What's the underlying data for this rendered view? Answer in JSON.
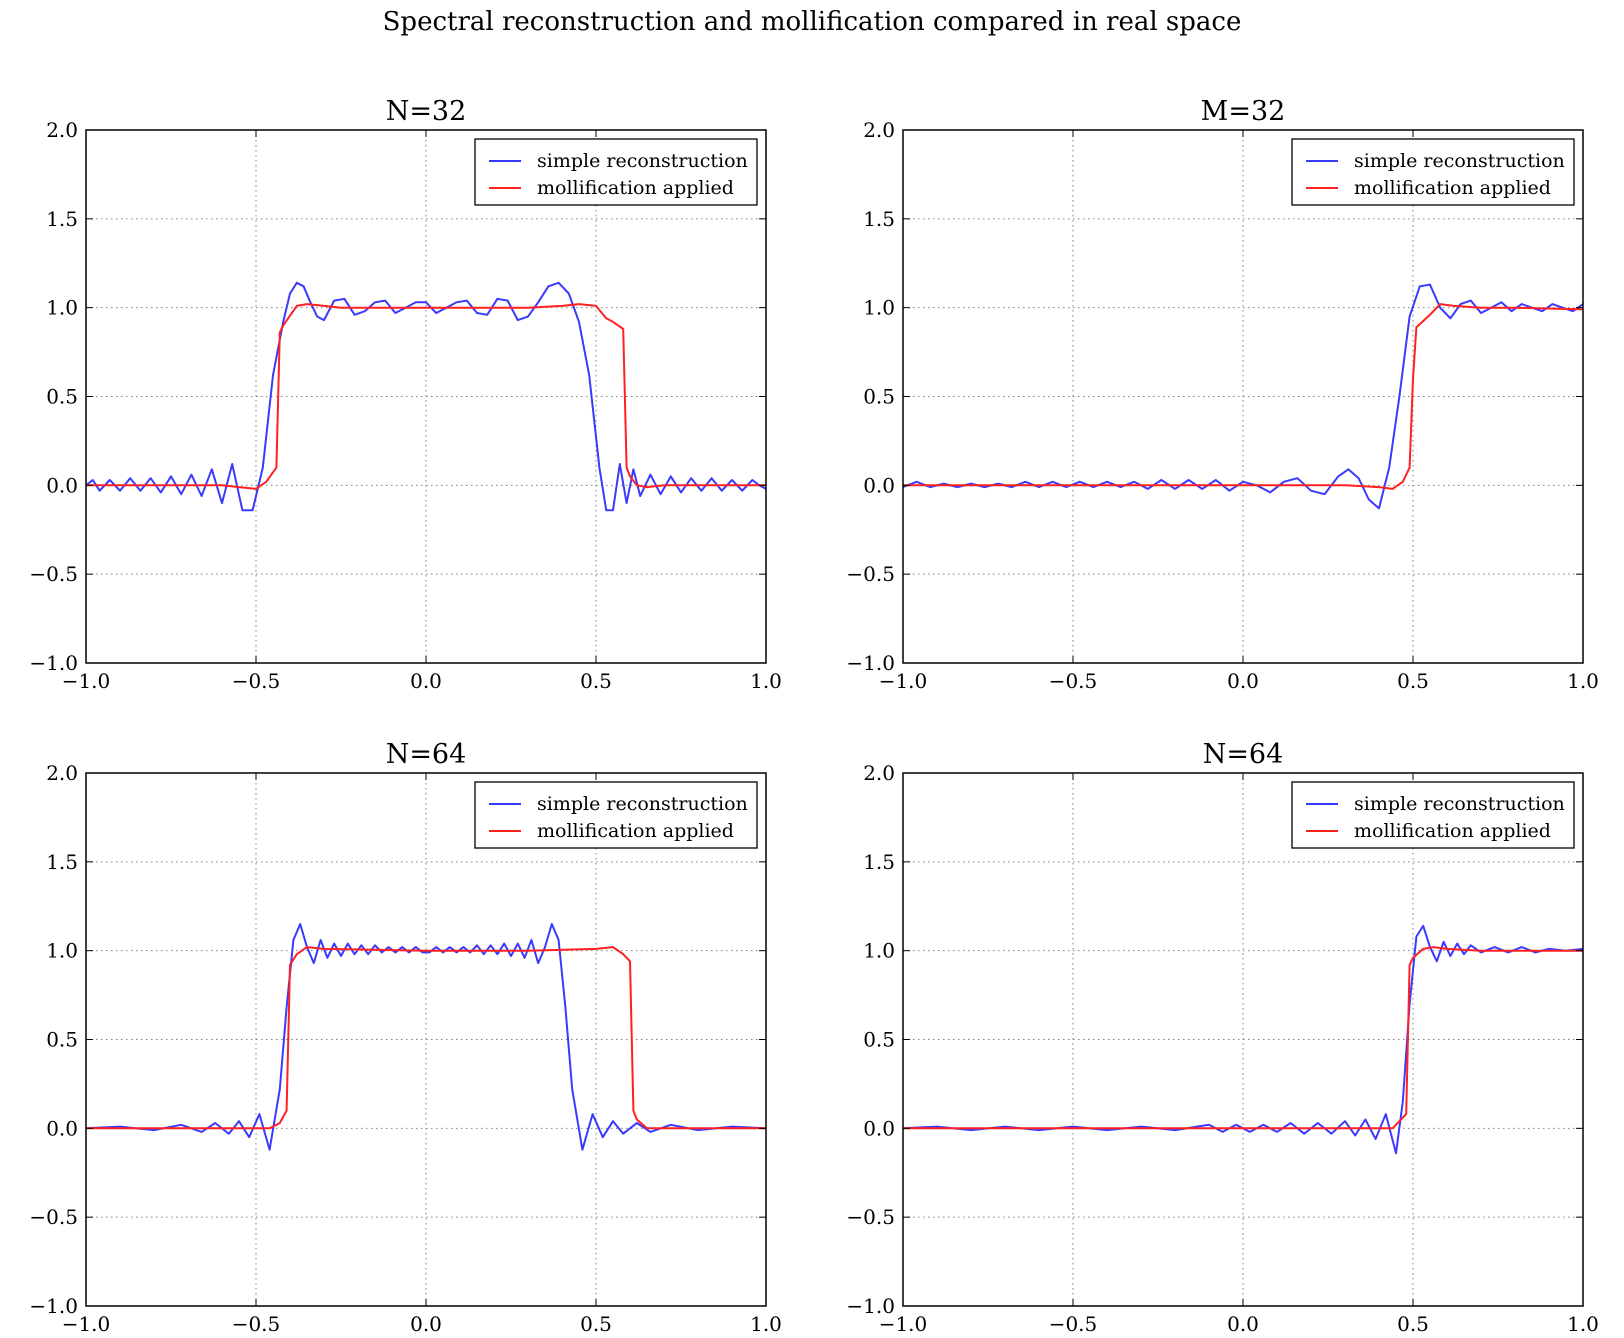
{
  "figure": {
    "title": "Spectral reconstruction and mollification compared in real space"
  },
  "legend_labels": [
    "simple reconstruction",
    "mollification applied"
  ],
  "colors": {
    "simple": "#3a3aff",
    "mollified": "#ff2020",
    "grid": "#808080"
  },
  "chart_data": [
    {
      "type": "line",
      "title": "N=32",
      "xlim": [
        -1.0,
        1.0
      ],
      "ylim": [
        -1.0,
        2.0
      ],
      "xticks": [
        -1.0,
        -0.5,
        0.0,
        0.5,
        1.0
      ],
      "xtick_labels": [
        "−1.0",
        "−0.5",
        "0.0",
        "0.5",
        "1.0"
      ],
      "yticks": [
        -1.0,
        -0.5,
        0.0,
        0.5,
        1.0,
        1.5,
        2.0
      ],
      "ytick_labels": [
        "−1.0",
        "−0.5",
        "0.0",
        "0.5",
        "1.0",
        "1.5",
        "2.0"
      ],
      "grid": true,
      "legend": "upper right",
      "series": [
        {
          "name": "simple reconstruction",
          "color": "#3a3aff",
          "x": [
            -1.0,
            -0.98,
            -0.96,
            -0.93,
            -0.9,
            -0.87,
            -0.84,
            -0.81,
            -0.78,
            -0.75,
            -0.72,
            -0.69,
            -0.66,
            -0.63,
            -0.6,
            -0.57,
            -0.54,
            -0.51,
            -0.48,
            -0.45,
            -0.42,
            -0.4,
            -0.38,
            -0.36,
            -0.34,
            -0.32,
            -0.3,
            -0.27,
            -0.24,
            -0.21,
            -0.18,
            -0.15,
            -0.12,
            -0.09,
            -0.06,
            -0.03,
            0.0,
            0.03,
            0.06,
            0.09,
            0.12,
            0.15,
            0.18,
            0.21,
            0.24,
            0.27,
            0.3,
            0.33,
            0.36,
            0.39,
            0.42,
            0.45,
            0.48,
            0.51,
            0.53,
            0.55,
            0.57,
            0.59,
            0.61,
            0.63,
            0.66,
            0.69,
            0.72,
            0.75,
            0.78,
            0.81,
            0.84,
            0.87,
            0.9,
            0.93,
            0.96,
            0.98,
            1.0
          ],
          "y": [
            0.0,
            0.03,
            -0.03,
            0.03,
            -0.03,
            0.04,
            -0.03,
            0.04,
            -0.04,
            0.05,
            -0.05,
            0.06,
            -0.06,
            0.09,
            -0.1,
            0.12,
            -0.14,
            -0.14,
            0.1,
            0.62,
            0.92,
            1.08,
            1.14,
            1.12,
            1.03,
            0.95,
            0.93,
            1.04,
            1.05,
            0.96,
            0.98,
            1.03,
            1.04,
            0.97,
            1.0,
            1.03,
            1.03,
            0.97,
            1.0,
            1.03,
            1.04,
            0.97,
            0.96,
            1.05,
            1.04,
            0.93,
            0.95,
            1.03,
            1.12,
            1.14,
            1.08,
            0.92,
            0.62,
            0.1,
            -0.14,
            -0.14,
            0.12,
            -0.1,
            0.09,
            -0.06,
            0.06,
            -0.05,
            0.05,
            -0.04,
            0.04,
            -0.03,
            0.04,
            -0.03,
            0.03,
            -0.03,
            0.03,
            0.0,
            -0.02
          ]
        },
        {
          "name": "mollification applied",
          "color": "#ff2020",
          "x": [
            -1.0,
            -0.8,
            -0.6,
            -0.55,
            -0.5,
            -0.47,
            -0.44,
            -0.43,
            -0.42,
            -0.38,
            -0.35,
            -0.3,
            -0.25,
            -0.2,
            0.0,
            0.3,
            0.4,
            0.45,
            0.5,
            0.53,
            0.55,
            0.58,
            0.59,
            0.6,
            0.62,
            0.65,
            0.7,
            0.8,
            1.0
          ],
          "y": [
            0.0,
            0.0,
            0.0,
            -0.01,
            -0.02,
            0.02,
            0.1,
            0.86,
            0.9,
            1.01,
            1.02,
            1.01,
            1.0,
            1.0,
            1.0,
            1.0,
            1.01,
            1.02,
            1.01,
            0.94,
            0.92,
            0.88,
            0.1,
            0.05,
            0.0,
            -0.01,
            0.0,
            0.0,
            0.0
          ]
        }
      ]
    },
    {
      "type": "line",
      "title": "M=32",
      "xlim": [
        -1.0,
        1.0
      ],
      "ylim": [
        -1.0,
        2.0
      ],
      "xticks": [
        -1.0,
        -0.5,
        0.0,
        0.5,
        1.0
      ],
      "xtick_labels": [
        "−1.0",
        "−0.5",
        "0.0",
        "0.5",
        "1.0"
      ],
      "yticks": [
        -1.0,
        -0.5,
        0.0,
        0.5,
        1.0,
        1.5,
        2.0
      ],
      "ytick_labels": [
        "−1.0",
        "−0.5",
        "0.0",
        "0.5",
        "1.0",
        "1.5",
        "2.0"
      ],
      "grid": true,
      "legend": "upper right",
      "series": [
        {
          "name": "simple reconstruction",
          "color": "#3a3aff",
          "x": [
            -1.0,
            -0.96,
            -0.92,
            -0.88,
            -0.84,
            -0.8,
            -0.76,
            -0.72,
            -0.68,
            -0.64,
            -0.6,
            -0.56,
            -0.52,
            -0.48,
            -0.44,
            -0.4,
            -0.36,
            -0.32,
            -0.28,
            -0.24,
            -0.2,
            -0.16,
            -0.12,
            -0.08,
            -0.04,
            0.0,
            0.04,
            0.08,
            0.12,
            0.16,
            0.2,
            0.24,
            0.28,
            0.31,
            0.34,
            0.37,
            0.4,
            0.43,
            0.46,
            0.49,
            0.52,
            0.55,
            0.58,
            0.61,
            0.64,
            0.67,
            0.7,
            0.73,
            0.76,
            0.79,
            0.82,
            0.85,
            0.88,
            0.91,
            0.94,
            0.97,
            1.0
          ],
          "y": [
            -0.01,
            0.02,
            -0.01,
            0.01,
            -0.01,
            0.01,
            -0.01,
            0.01,
            -0.01,
            0.02,
            -0.01,
            0.02,
            -0.01,
            0.02,
            -0.01,
            0.02,
            -0.01,
            0.02,
            -0.02,
            0.03,
            -0.02,
            0.03,
            -0.02,
            0.03,
            -0.03,
            0.02,
            0.0,
            -0.04,
            0.02,
            0.04,
            -0.03,
            -0.05,
            0.05,
            0.09,
            0.04,
            -0.08,
            -0.13,
            0.1,
            0.5,
            0.95,
            1.12,
            1.13,
            1.0,
            0.94,
            1.02,
            1.04,
            0.97,
            1.0,
            1.03,
            0.98,
            1.02,
            1.0,
            0.98,
            1.02,
            1.0,
            0.98,
            1.02
          ]
        },
        {
          "name": "mollification applied",
          "color": "#ff2020",
          "x": [
            -1.0,
            -0.5,
            0.0,
            0.3,
            0.4,
            0.44,
            0.47,
            0.49,
            0.5,
            0.51,
            0.55,
            0.58,
            0.62,
            0.7,
            0.8,
            1.0
          ],
          "y": [
            0.0,
            0.0,
            0.0,
            0.0,
            -0.01,
            -0.02,
            0.02,
            0.1,
            0.6,
            0.89,
            0.96,
            1.02,
            1.01,
            1.0,
            1.0,
            0.99
          ]
        }
      ]
    },
    {
      "type": "line",
      "title": "N=64",
      "xlim": [
        -1.0,
        1.0
      ],
      "ylim": [
        -1.0,
        2.0
      ],
      "xticks": [
        -1.0,
        -0.5,
        0.0,
        0.5,
        1.0
      ],
      "xtick_labels": [
        "−1.0",
        "−0.5",
        "0.0",
        "0.5",
        "1.0"
      ],
      "yticks": [
        -1.0,
        -0.5,
        0.0,
        0.5,
        1.0,
        1.5,
        2.0
      ],
      "ytick_labels": [
        "−1.0",
        "−0.5",
        "0.0",
        "0.5",
        "1.0",
        "1.5",
        "2.0"
      ],
      "grid": true,
      "legend": "upper right",
      "series": [
        {
          "name": "simple reconstruction",
          "color": "#3a3aff",
          "x": [
            -1.0,
            -0.9,
            -0.8,
            -0.72,
            -0.66,
            -0.62,
            -0.58,
            -0.55,
            -0.52,
            -0.49,
            -0.46,
            -0.43,
            -0.41,
            -0.39,
            -0.37,
            -0.35,
            -0.33,
            -0.31,
            -0.29,
            -0.27,
            -0.25,
            -0.23,
            -0.21,
            -0.19,
            -0.17,
            -0.15,
            -0.13,
            -0.11,
            -0.09,
            -0.07,
            -0.05,
            -0.03,
            -0.01,
            0.01,
            0.03,
            0.05,
            0.07,
            0.09,
            0.11,
            0.13,
            0.15,
            0.17,
            0.19,
            0.21,
            0.23,
            0.25,
            0.27,
            0.29,
            0.31,
            0.33,
            0.35,
            0.37,
            0.39,
            0.41,
            0.43,
            0.46,
            0.49,
            0.52,
            0.55,
            0.58,
            0.62,
            0.66,
            0.72,
            0.8,
            0.9,
            1.0
          ],
          "y": [
            0.0,
            0.01,
            -0.01,
            0.02,
            -0.02,
            0.03,
            -0.03,
            0.04,
            -0.05,
            0.08,
            -0.12,
            0.22,
            0.68,
            1.06,
            1.15,
            1.02,
            0.93,
            1.06,
            0.96,
            1.04,
            0.97,
            1.04,
            0.98,
            1.03,
            0.98,
            1.03,
            0.99,
            1.02,
            0.99,
            1.02,
            0.99,
            1.02,
            0.99,
            0.99,
            1.02,
            0.99,
            1.02,
            0.99,
            1.02,
            0.99,
            1.03,
            0.98,
            1.03,
            0.98,
            1.04,
            0.97,
            1.04,
            0.96,
            1.06,
            0.93,
            1.02,
            1.15,
            1.06,
            0.68,
            0.22,
            -0.12,
            0.08,
            -0.05,
            0.04,
            -0.03,
            0.03,
            -0.02,
            0.02,
            -0.01,
            0.01,
            0.0
          ]
        },
        {
          "name": "mollification applied",
          "color": "#ff2020",
          "x": [
            -1.0,
            -0.6,
            -0.5,
            -0.46,
            -0.43,
            -0.41,
            -0.4,
            -0.38,
            -0.35,
            -0.3,
            0.0,
            0.3,
            0.5,
            0.55,
            0.58,
            0.6,
            0.61,
            0.62,
            0.65,
            0.7,
            1.0
          ],
          "y": [
            0.0,
            0.0,
            0.0,
            0.0,
            0.03,
            0.1,
            0.92,
            0.98,
            1.02,
            1.01,
            1.0,
            1.0,
            1.01,
            1.02,
            0.98,
            0.94,
            0.1,
            0.05,
            0.0,
            0.0,
            0.0
          ]
        }
      ]
    },
    {
      "type": "line",
      "title": "N=64",
      "xlim": [
        -1.0,
        1.0
      ],
      "ylim": [
        -1.0,
        2.0
      ],
      "xticks": [
        -1.0,
        -0.5,
        0.0,
        0.5,
        1.0
      ],
      "xtick_labels": [
        "−1.0",
        "−0.5",
        "0.0",
        "0.5",
        "1.0"
      ],
      "yticks": [
        -1.0,
        -0.5,
        0.0,
        0.5,
        1.0,
        1.5,
        2.0
      ],
      "ytick_labels": [
        "−1.0",
        "−0.5",
        "0.0",
        "0.5",
        "1.0",
        "1.5",
        "2.0"
      ],
      "grid": true,
      "legend": "upper right",
      "series": [
        {
          "name": "simple reconstruction",
          "color": "#3a3aff",
          "x": [
            -1.0,
            -0.9,
            -0.8,
            -0.7,
            -0.6,
            -0.5,
            -0.4,
            -0.3,
            -0.2,
            -0.1,
            -0.06,
            -0.02,
            0.02,
            0.06,
            0.1,
            0.14,
            0.18,
            0.22,
            0.26,
            0.3,
            0.33,
            0.36,
            0.39,
            0.42,
            0.45,
            0.47,
            0.49,
            0.51,
            0.53,
            0.55,
            0.57,
            0.59,
            0.61,
            0.63,
            0.65,
            0.67,
            0.7,
            0.74,
            0.78,
            0.82,
            0.86,
            0.9,
            0.95,
            1.0
          ],
          "y": [
            0.0,
            0.01,
            -0.01,
            0.01,
            -0.01,
            0.01,
            -0.01,
            0.01,
            -0.01,
            0.02,
            -0.02,
            0.02,
            -0.02,
            0.02,
            -0.02,
            0.03,
            -0.03,
            0.03,
            -0.03,
            0.04,
            -0.04,
            0.05,
            -0.06,
            0.08,
            -0.14,
            0.15,
            0.7,
            1.08,
            1.14,
            1.02,
            0.94,
            1.05,
            0.97,
            1.04,
            0.98,
            1.03,
            0.99,
            1.02,
            0.99,
            1.02,
            0.99,
            1.01,
            1.0,
            1.01
          ]
        },
        {
          "name": "mollification applied",
          "color": "#ff2020",
          "x": [
            -1.0,
            -0.5,
            0.0,
            0.3,
            0.44,
            0.48,
            0.49,
            0.5,
            0.53,
            0.56,
            0.6,
            0.7,
            1.0
          ],
          "y": [
            0.0,
            0.0,
            0.0,
            0.0,
            0.0,
            0.08,
            0.92,
            0.96,
            1.01,
            1.02,
            1.01,
            1.0,
            1.0
          ]
        }
      ]
    }
  ]
}
